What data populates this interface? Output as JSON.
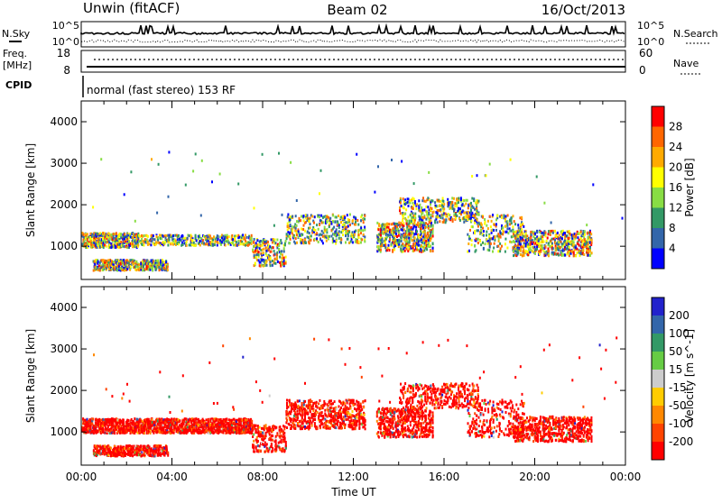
{
  "header": {
    "title": "Unwin (fitACF)",
    "beam": "Beam 02",
    "date": "16/Oct/2013"
  },
  "top_panel": {
    "left_label": "N.Sky",
    "right_label": "N.Search",
    "left_ticks": [
      "10^5",
      "10^0"
    ],
    "right_ticks": [
      "10^5",
      "10^0"
    ]
  },
  "freq_panel": {
    "left_label_1": "Freq.",
    "left_label_2": "[MHz]",
    "right_label": "Nave",
    "left_ticks": [
      "18",
      "8"
    ],
    "right_ticks": [
      "60",
      "0"
    ],
    "cpid_label": "CPID",
    "cpid_text": "normal (fast stereo) 153 RF"
  },
  "x_axis": {
    "label": "Time UT",
    "ticks": [
      "00:00",
      "04:00",
      "08:00",
      "12:00",
      "16:00",
      "20:00",
      "00:00"
    ]
  },
  "chart_data": [
    {
      "type": "heatmap",
      "name": "power",
      "ylabel": "Slant Range [km]",
      "ylim": [
        200,
        4500
      ],
      "y_ticks": [
        1000,
        2000,
        3000,
        4000
      ],
      "xlim_hours": [
        0,
        24
      ],
      "colorbar": {
        "label": "Power [dB]",
        "ticks": [
          "28",
          "24",
          "20",
          "16",
          "12",
          "8",
          "4"
        ],
        "colors": [
          "#ff0000",
          "#ff6600",
          "#ffaa00",
          "#ffff00",
          "#88dd44",
          "#339966",
          "#3366aa",
          "#0000ff"
        ]
      },
      "bands": [
        {
          "t0": 0.0,
          "t1": 2.5,
          "r0": 1000,
          "r1": 1350,
          "weight": 0.9
        },
        {
          "t0": 0.5,
          "t1": 3.8,
          "r0": 450,
          "r1": 700,
          "weight": 0.8
        },
        {
          "t0": 2.5,
          "t1": 7.5,
          "r0": 1050,
          "r1": 1300,
          "weight": 0.6
        },
        {
          "t0": 7.5,
          "t1": 9.0,
          "r0": 550,
          "r1": 1200,
          "weight": 0.8
        },
        {
          "t0": 9.0,
          "t1": 12.5,
          "r0": 1100,
          "r1": 1800,
          "weight": 0.7
        },
        {
          "t0": 13.0,
          "t1": 15.5,
          "r0": 900,
          "r1": 1600,
          "weight": 1.0
        },
        {
          "t0": 14.0,
          "t1": 17.5,
          "r0": 1600,
          "r1": 2200,
          "weight": 0.7
        },
        {
          "t0": 17.0,
          "t1": 19.5,
          "r0": 900,
          "r1": 1800,
          "weight": 0.7
        },
        {
          "t0": 19.0,
          "t1": 22.5,
          "r0": 800,
          "r1": 1400,
          "weight": 0.9
        },
        {
          "t0": 0.0,
          "t1": 24.0,
          "r0": 1500,
          "r1": 3300,
          "weight": 0.08
        }
      ]
    },
    {
      "type": "heatmap",
      "name": "velocity",
      "ylabel": "Slant Range [km]",
      "ylim": [
        200,
        4500
      ],
      "y_ticks": [
        1000,
        2000,
        3000,
        4000
      ],
      "xlim_hours": [
        0,
        24
      ],
      "colorbar": {
        "label": "Velocity [m s^-1]",
        "ticks": [
          "200",
          "100",
          "50",
          "15",
          "-15",
          "-50",
          "-100",
          "-200"
        ],
        "colors": [
          "#2222cc",
          "#3366aa",
          "#339966",
          "#66cc44",
          "#cccccc",
          "#ffcc00",
          "#ff8800",
          "#ff4400",
          "#ff0000"
        ]
      },
      "bands": [
        {
          "t0": 0.0,
          "t1": 7.5,
          "r0": 1000,
          "r1": 1350,
          "weight": 1.0
        },
        {
          "t0": 0.5,
          "t1": 3.8,
          "r0": 450,
          "r1": 700,
          "weight": 0.8
        },
        {
          "t0": 7.5,
          "t1": 9.0,
          "r0": 550,
          "r1": 1200,
          "weight": 0.8
        },
        {
          "t0": 9.0,
          "t1": 12.5,
          "r0": 1100,
          "r1": 1800,
          "weight": 0.9
        },
        {
          "t0": 13.0,
          "t1": 15.5,
          "r0": 900,
          "r1": 1600,
          "weight": 1.0
        },
        {
          "t0": 14.0,
          "t1": 17.5,
          "r0": 1600,
          "r1": 2200,
          "weight": 0.7
        },
        {
          "t0": 17.0,
          "t1": 19.5,
          "r0": 900,
          "r1": 1800,
          "weight": 0.7
        },
        {
          "t0": 19.0,
          "t1": 22.5,
          "r0": 800,
          "r1": 1400,
          "weight": 0.9
        },
        {
          "t0": 0.0,
          "t1": 24.0,
          "r0": 1500,
          "r1": 3300,
          "weight": 0.08
        }
      ]
    }
  ]
}
